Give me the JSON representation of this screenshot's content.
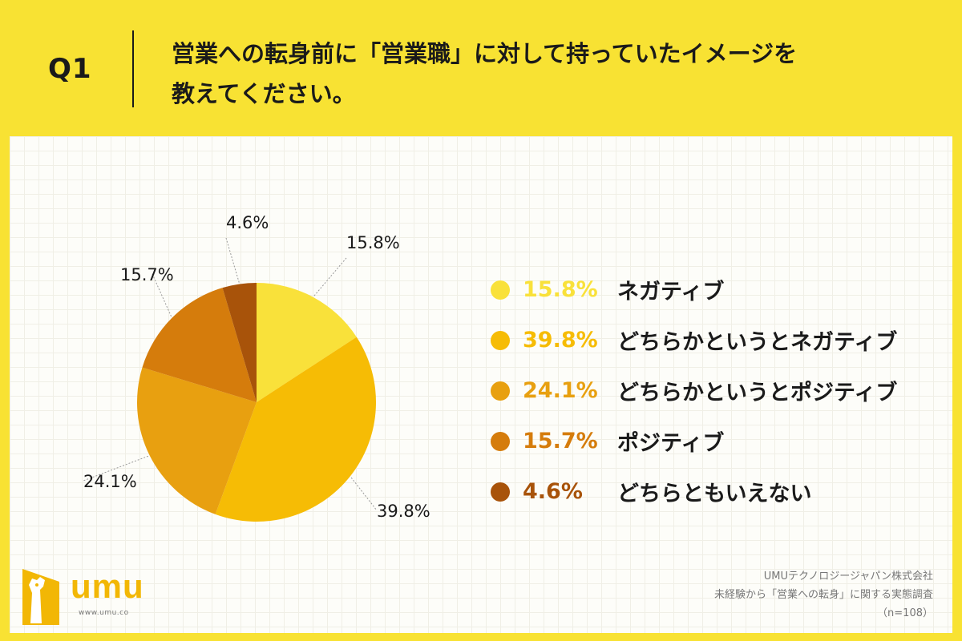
{
  "header": {
    "q_number": "Q1",
    "title_lines": [
      "営業への転身前に「営業職」に対して持っていたイメージを",
      "教えてください。"
    ]
  },
  "chart_data": {
    "type": "pie",
    "title": "",
    "categories": [
      "ネガティブ",
      "どちらかというとネガティブ",
      "どちらかというとポジティブ",
      "ポジティブ",
      "どちらともいえない"
    ],
    "values": [
      15.8,
      39.8,
      24.1,
      15.7,
      4.6
    ],
    "value_labels": [
      "15.8%",
      "39.8%",
      "24.1%",
      "15.7%",
      "4.6%"
    ],
    "colors": [
      "#f9e13a",
      "#f6bc05",
      "#e8a010",
      "#d57c0c",
      "#a8530a"
    ],
    "start_angle": "12 o'clock",
    "direction": "clockwise",
    "legend_position": "right"
  },
  "logo": {
    "name": "umu",
    "url": "www.umu.co"
  },
  "credit": {
    "lines": [
      "UMUテクノロジージャパン株式会社",
      "未経験から「営業への転身」に関する実態調査",
      "（n=108）"
    ]
  }
}
